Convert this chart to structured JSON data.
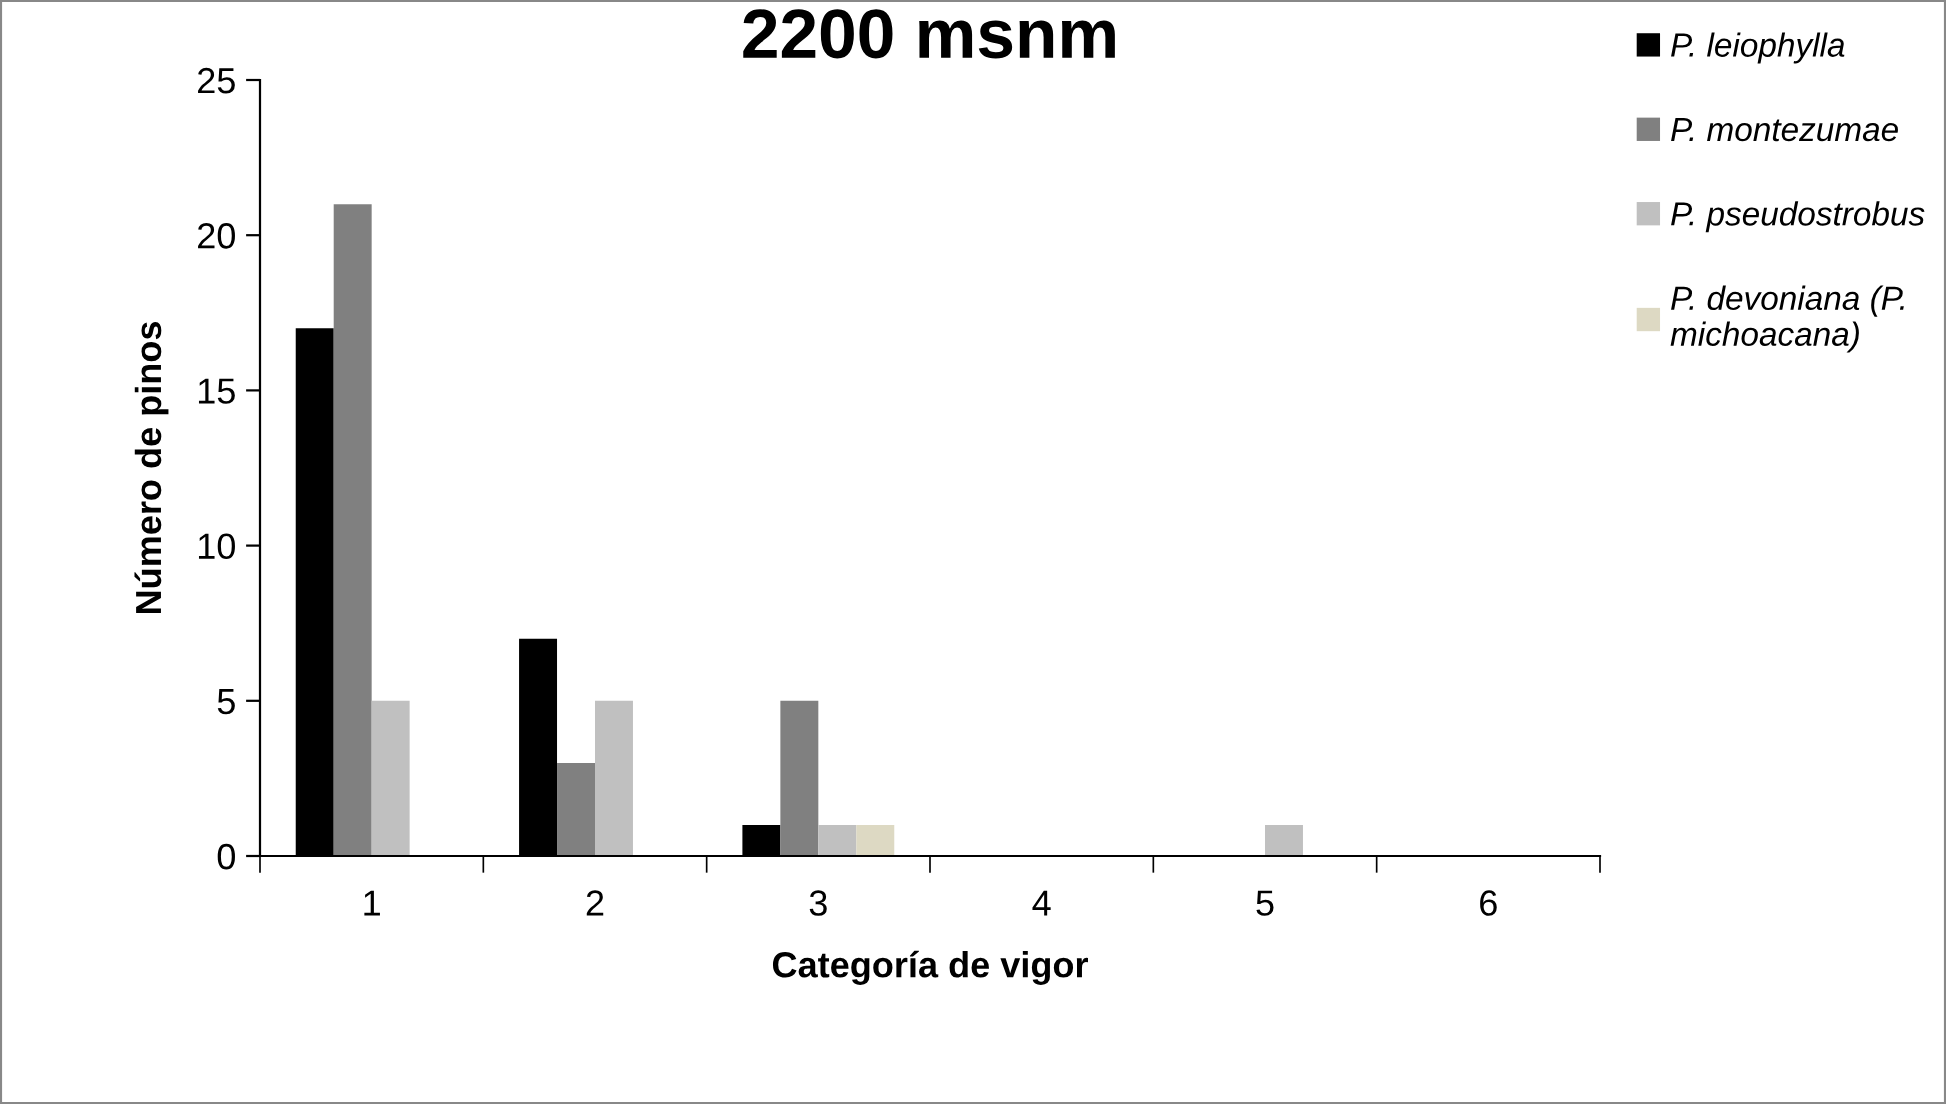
{
  "chart_data": {
    "type": "bar",
    "title": "2200 msnm",
    "xlabel": "Categoría de vigor",
    "ylabel": "Número de pinos",
    "categories": [
      "1",
      "2",
      "3",
      "4",
      "5",
      "6"
    ],
    "series": [
      {
        "name": "P. leiophylla",
        "color": "#000000",
        "values": [
          17,
          7,
          1,
          0,
          0,
          0
        ]
      },
      {
        "name": "P. montezumae",
        "color": "#808080",
        "values": [
          21,
          3,
          5,
          0,
          0,
          0
        ]
      },
      {
        "name": "P. pseudostrobus",
        "color": "#c0c0c0",
        "values": [
          5,
          5,
          1,
          0,
          1,
          0
        ]
      },
      {
        "name": "P. devoniana (P. michoacana)",
        "color": "#ddd9c3",
        "values": [
          0,
          0,
          1,
          0,
          0,
          0
        ]
      }
    ],
    "ylim": [
      0,
      25
    ],
    "yticks": [
      0,
      5,
      10,
      15,
      20,
      25
    ],
    "grid": false,
    "legend": "right"
  }
}
